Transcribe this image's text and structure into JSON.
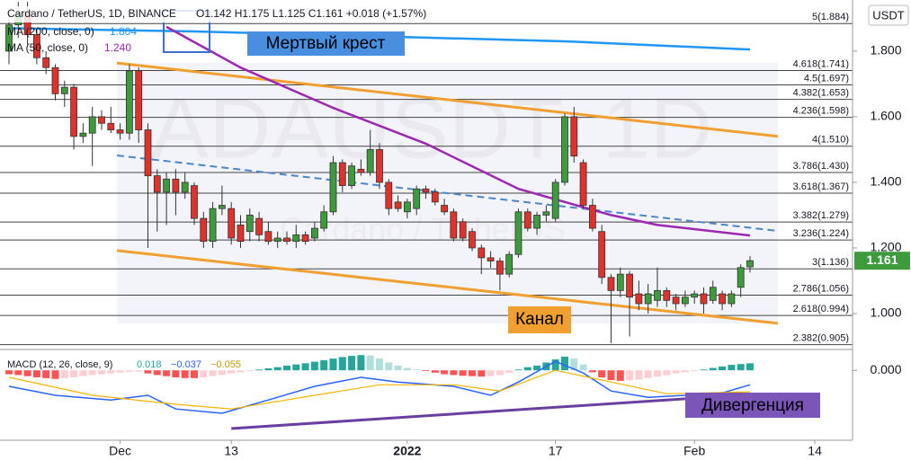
{
  "chart_data": {
    "type": "candlestick",
    "header": "Cardano / TetherUS, 1D, BINANCE",
    "ohlc_text": "O1.142  H1.175  L1.125  C1.161  +0.018 (+1.57%)",
    "currency": "USDT",
    "watermark": "ADAUSDT, 1D",
    "watermark_sub": "Cardano / TetherUS",
    "xlim": [
      -0.97,
      91.07
    ],
    "xticks": [
      {
        "value": 12,
        "label": "Dec"
      },
      {
        "value": 24,
        "label": "13"
      },
      {
        "value": 43,
        "label": "2022"
      },
      {
        "value": 59,
        "label": "17"
      },
      {
        "value": 74,
        "label": "Feb"
      },
      {
        "value": 87,
        "label": "14"
      }
    ],
    "ylim": [
      0.893,
      1.956
    ],
    "yticks": [
      {
        "value": 1.8,
        "label": "1.800"
      },
      {
        "value": 1.6,
        "label": "1.600"
      },
      {
        "value": 1.4,
        "label": "1.400"
      },
      {
        "value": 1.2,
        "label": "1.200"
      },
      {
        "value": 1.0,
        "label": "1.000"
      }
    ],
    "up_color": "#3d9a3d",
    "down_color": "#e0312b",
    "open": [
      1.8,
      1.88,
      1.92,
      1.85,
      1.78,
      1.75,
      1.67,
      1.69,
      1.54,
      1.55,
      1.6,
      1.58,
      1.56,
      1.55,
      1.74,
      1.56,
      1.42,
      1.37,
      1.41,
      1.37,
      1.39,
      1.29,
      1.22,
      1.32,
      1.32,
      1.27,
      1.25,
      1.29,
      1.25,
      1.22,
      1.23,
      1.22,
      1.24,
      1.23,
      1.26,
      1.31,
      1.46,
      1.39,
      1.44,
      1.43,
      1.5,
      1.4,
      1.34,
      1.31,
      1.32,
      1.38,
      1.37,
      1.33,
      1.31,
      1.28,
      1.25,
      1.2,
      1.17,
      1.16,
      1.12,
      1.18,
      1.31,
      1.26,
      1.3,
      1.29,
      1.4,
      1.6,
      1.46,
      1.33,
      1.25,
      1.11,
      1.07,
      1.12,
      1.06,
      1.03,
      1.04,
      1.07,
      1.05,
      1.03,
      1.05,
      1.06,
      1.04,
      1.06,
      1.03,
      1.08,
      1.142
    ],
    "high": [
      1.91,
      1.95,
      1.95,
      1.87,
      1.8,
      1.76,
      1.71,
      1.7,
      1.58,
      1.63,
      1.62,
      1.63,
      1.58,
      1.76,
      1.75,
      1.58,
      1.44,
      1.43,
      1.44,
      1.43,
      1.4,
      1.31,
      1.34,
      1.39,
      1.34,
      1.3,
      1.32,
      1.31,
      1.28,
      1.25,
      1.25,
      1.27,
      1.25,
      1.28,
      1.33,
      1.48,
      1.47,
      1.46,
      1.47,
      1.56,
      1.52,
      1.41,
      1.36,
      1.35,
      1.39,
      1.39,
      1.38,
      1.35,
      1.32,
      1.29,
      1.26,
      1.21,
      1.19,
      1.17,
      1.19,
      1.32,
      1.32,
      1.31,
      1.33,
      1.41,
      1.61,
      1.63,
      1.47,
      1.35,
      1.27,
      1.12,
      1.14,
      1.13,
      1.1,
      1.09,
      1.14,
      1.08,
      1.06,
      1.07,
      1.07,
      1.08,
      1.1,
      1.07,
      1.07,
      1.15,
      1.175
    ],
    "low": [
      1.76,
      1.84,
      1.82,
      1.76,
      1.73,
      1.65,
      1.63,
      1.5,
      1.52,
      1.45,
      1.56,
      1.55,
      1.53,
      1.53,
      1.52,
      1.2,
      1.25,
      1.27,
      1.3,
      1.35,
      1.27,
      1.2,
      1.2,
      1.3,
      1.21,
      1.2,
      1.22,
      1.22,
      1.21,
      1.2,
      1.21,
      1.2,
      1.21,
      1.22,
      1.25,
      1.3,
      1.37,
      1.38,
      1.42,
      1.42,
      1.38,
      1.3,
      1.31,
      1.29,
      1.3,
      1.35,
      1.33,
      1.3,
      1.22,
      1.22,
      1.19,
      1.12,
      1.14,
      1.07,
      1.11,
      1.17,
      1.25,
      1.24,
      1.28,
      1.28,
      1.39,
      1.46,
      1.32,
      1.25,
      1.09,
      0.91,
      1.05,
      0.93,
      1.01,
      1.0,
      1.02,
      1.02,
      1.01,
      1.02,
      1.03,
      1.0,
      1.03,
      1.01,
      1.02,
      1.05,
      1.125
    ],
    "close": [
      1.88,
      1.92,
      1.85,
      1.78,
      1.75,
      1.67,
      1.69,
      1.54,
      1.55,
      1.6,
      1.58,
      1.56,
      1.55,
      1.74,
      1.56,
      1.42,
      1.37,
      1.41,
      1.37,
      1.4,
      1.29,
      1.22,
      1.32,
      1.33,
      1.23,
      1.22,
      1.3,
      1.24,
      1.22,
      1.23,
      1.22,
      1.24,
      1.22,
      1.26,
      1.31,
      1.46,
      1.39,
      1.45,
      1.43,
      1.5,
      1.4,
      1.32,
      1.32,
      1.34,
      1.38,
      1.37,
      1.34,
      1.31,
      1.23,
      1.23,
      1.2,
      1.17,
      1.16,
      1.12,
      1.18,
      1.31,
      1.26,
      1.3,
      1.31,
      1.4,
      1.6,
      1.48,
      1.33,
      1.26,
      1.11,
      1.07,
      1.12,
      1.05,
      1.03,
      1.06,
      1.07,
      1.04,
      1.03,
      1.05,
      1.06,
      1.03,
      1.08,
      1.03,
      1.06,
      1.14,
      1.161
    ],
    "moving_averages": [
      {
        "name": "MA (200, close, 0)",
        "value_label": "1.804",
        "color": "#2196f3",
        "x": [
          0,
          20,
          40,
          60,
          80
        ],
        "values": [
          1.87,
          1.86,
          1.845,
          1.83,
          1.805
        ]
      },
      {
        "name": "MA (50, close, 0)",
        "value_label": "1.240",
        "color": "#9c27b0",
        "x": [
          17,
          25,
          35,
          45,
          55,
          60,
          65,
          70,
          80
        ],
        "values": [
          1.874,
          1.75,
          1.627,
          1.518,
          1.38,
          1.34,
          1.3,
          1.27,
          1.238
        ]
      }
    ],
    "trend_lines": [
      {
        "color": "#f0a030",
        "dashed": false,
        "x": [
          11.65,
          83
        ],
        "values": [
          1.764,
          1.54
        ]
      },
      {
        "color": "#f0a030",
        "dashed": false,
        "x": [
          11.65,
          83
        ],
        "values": [
          1.192,
          0.97
        ]
      },
      {
        "color": "#4a86c8",
        "dashed": true,
        "x": [
          11.65,
          83
        ],
        "values": [
          1.482,
          1.252
        ]
      }
    ],
    "fib_levels": [
      {
        "value": 1.884,
        "label": "5(1.884)"
      },
      {
        "value": 1.741,
        "label": "4.618(1.741)"
      },
      {
        "value": 1.697,
        "label": "4.5(1.697)"
      },
      {
        "value": 1.653,
        "label": "4.382(1.653)"
      },
      {
        "value": 1.598,
        "label": "4.236(1.598)"
      },
      {
        "value": 1.51,
        "label": "4(1.510)"
      },
      {
        "value": 1.43,
        "label": "3.786(1.430)"
      },
      {
        "value": 1.367,
        "label": "3.618(1.367)"
      },
      {
        "value": 1.279,
        "label": "3.382(1.279)"
      },
      {
        "value": 1.224,
        "label": "3.236(1.224)"
      },
      {
        "value": 1.136,
        "label": "3(1.136)"
      },
      {
        "value": 1.056,
        "label": "2.786(1.056)"
      },
      {
        "value": 0.994,
        "label": "2.618(0.994)"
      },
      {
        "value": 0.905,
        "label": "2.382(0.905)"
      }
    ],
    "annotations": {
      "death_cross": "Мертвый крест",
      "channel": "Канал",
      "divergence": "Дивергенция"
    },
    "macd": {
      "title": "MACD (12, 26, close, 9)",
      "legend_values": [
        "0.018",
        "−0.037",
        "−0.055"
      ],
      "ylim": [
        -0.179,
        0.051
      ],
      "yticks": [
        {
          "value": 0,
          "label": "0.000"
        }
      ],
      "histogram": [
        -0.01,
        -0.012,
        -0.015,
        -0.018,
        -0.02,
        -0.022,
        -0.02,
        -0.018,
        -0.015,
        -0.012,
        -0.01,
        -0.008,
        -0.006,
        -0.004,
        -0.003,
        -0.008,
        -0.012,
        -0.015,
        -0.018,
        -0.02,
        -0.02,
        -0.018,
        -0.015,
        -0.012,
        -0.008,
        -0.005,
        -0.002,
        0.002,
        0.005,
        0.008,
        0.012,
        0.015,
        0.018,
        0.022,
        0.026,
        0.03,
        0.034,
        0.037,
        0.039,
        0.038,
        0.03,
        0.02,
        0.012,
        0.006,
        0.002,
        -0.002,
        -0.006,
        -0.01,
        -0.012,
        -0.014,
        -0.015,
        -0.016,
        -0.015,
        -0.012,
        -0.006,
        0.002,
        0.008,
        0.012,
        0.02,
        0.028,
        0.035,
        0.03,
        0.015,
        -0.005,
        -0.018,
        -0.025,
        -0.027,
        -0.026,
        -0.024,
        -0.02,
        -0.016,
        -0.012,
        -0.008,
        -0.005,
        -0.002,
        0.002,
        0.006,
        0.01,
        0.014,
        0.016,
        0.018
      ],
      "macd_line": {
        "color": "#2962ff",
        "x": [
          0,
          5,
          11,
          15,
          18,
          23,
          28,
          33,
          38,
          42,
          48,
          52,
          55,
          59,
          62,
          65,
          69,
          73,
          77,
          80
        ],
        "values": [
          -0.041,
          -0.064,
          -0.076,
          -0.064,
          -0.099,
          -0.11,
          -0.076,
          -0.041,
          -0.018,
          -0.03,
          -0.041,
          -0.064,
          -0.03,
          0.023,
          -0.007,
          -0.053,
          -0.069,
          -0.064,
          -0.058,
          -0.037
        ]
      },
      "signal_line": {
        "color": "#f5b400",
        "x": [
          0,
          9,
          18,
          24,
          33,
          40,
          48,
          53,
          59,
          65,
          71,
          80
        ],
        "values": [
          -0.018,
          -0.064,
          -0.087,
          -0.099,
          -0.064,
          -0.037,
          -0.037,
          -0.053,
          0.0,
          -0.03,
          -0.06,
          -0.055
        ]
      },
      "divergence_line": {
        "color": "#6a3fa0",
        "x": [
          24,
          73
        ],
        "values": [
          -0.149,
          -0.073
        ]
      }
    }
  }
}
